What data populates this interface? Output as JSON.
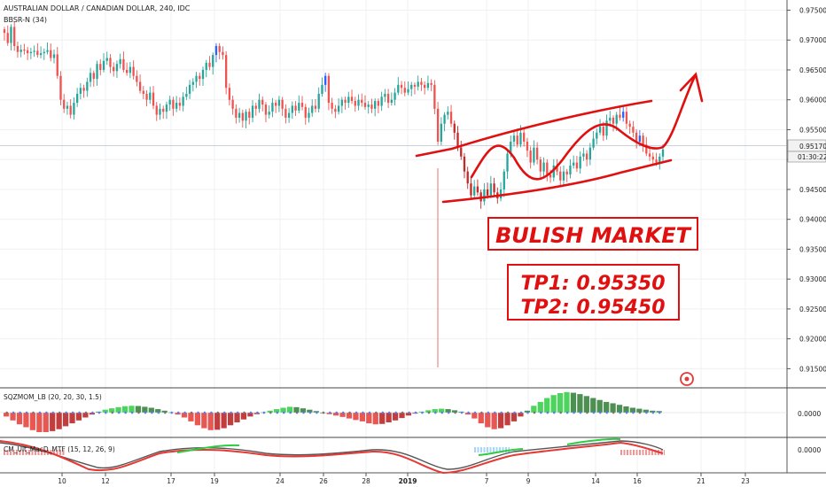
{
  "header": {
    "symbol_title": "AUSTRALIAN DOLLAR / CANADIAN DOLLAR, 240, IDC",
    "indicator_label": "BBSR-N (34)"
  },
  "chart_data": {
    "type": "candlestick",
    "price_axis": {
      "range": [
        0.9118,
        0.9767
      ],
      "ticks": [
        "0.97500",
        "0.97000",
        "0.96500",
        "0.96000",
        "0.95500",
        "0.95000",
        "0.94500",
        "0.94000",
        "0.93500",
        "0.93000",
        "0.92500",
        "0.92000",
        "0.91500"
      ],
      "last_price": "0.95170",
      "countdown": "01:30:22"
    },
    "x_axis": {
      "tick_labels": [
        "10",
        "12",
        "17",
        "19",
        "24",
        "26",
        "28",
        "2019",
        "7",
        "9",
        "14",
        "16",
        "21",
        "23"
      ]
    },
    "annotations": {
      "headline": "BULISH MARKET",
      "tp1": "TP1: 0.95350",
      "tp2": "TP2: 0.95450"
    },
    "closes": [
      0.9712,
      0.9695,
      0.9722,
      0.969,
      0.968,
      0.9684,
      0.9683,
      0.9678,
      0.968,
      0.9682,
      0.9675,
      0.9678,
      0.968,
      0.9683,
      0.967,
      0.9676,
      0.964,
      0.96,
      0.9585,
      0.959,
      0.9575,
      0.9595,
      0.961,
      0.962,
      0.9615,
      0.963,
      0.9645,
      0.9635,
      0.966,
      0.965,
      0.9665,
      0.967,
      0.9655,
      0.9648,
      0.966,
      0.9668,
      0.965,
      0.9645,
      0.9655,
      0.964,
      0.963,
      0.9615,
      0.961,
      0.96,
      0.9612,
      0.959,
      0.9575,
      0.9585,
      0.958,
      0.9592,
      0.96,
      0.9585,
      0.9595,
      0.959,
      0.9605,
      0.961,
      0.9625,
      0.963,
      0.964,
      0.9635,
      0.965,
      0.9662,
      0.9655,
      0.9675,
      0.969,
      0.968,
      0.9675,
      0.962,
      0.96,
      0.9585,
      0.957,
      0.9578,
      0.9565,
      0.958,
      0.957,
      0.959,
      0.9585,
      0.96,
      0.9592,
      0.9575,
      0.958,
      0.9595,
      0.959,
      0.96,
      0.9585,
      0.957,
      0.9578,
      0.959,
      0.9582,
      0.9595,
      0.9588,
      0.957,
      0.9578,
      0.959,
      0.9585,
      0.961,
      0.9625,
      0.964,
      0.9595,
      0.9585,
      0.958,
      0.959,
      0.96,
      0.9595,
      0.9605,
      0.9598,
      0.959,
      0.96,
      0.9595,
      0.9588,
      0.9592,
      0.9585,
      0.9598,
      0.959,
      0.9605,
      0.961,
      0.9595,
      0.96,
      0.9612,
      0.9625,
      0.962,
      0.9612,
      0.9618,
      0.9625,
      0.9622,
      0.963,
      0.9625,
      0.962,
      0.9628,
      0.9625,
      0.9585,
      0.953,
      0.956,
      0.9575,
      0.958,
      0.956,
      0.9545,
      0.952,
      0.9505,
      0.948,
      0.946,
      0.944,
      0.9455,
      0.9445,
      0.943,
      0.945,
      0.944,
      0.946,
      0.9445,
      0.9435,
      0.945,
      0.948,
      0.951,
      0.953,
      0.954,
      0.9525,
      0.9545,
      0.953,
      0.9515,
      0.9495,
      0.952,
      0.95,
      0.948,
      0.9495,
      0.9475,
      0.947,
      0.949,
      0.948,
      0.9465,
      0.948,
      0.9475,
      0.949,
      0.9495,
      0.9485,
      0.9505,
      0.951,
      0.95,
      0.952,
      0.9535,
      0.9545,
      0.9555,
      0.954,
      0.9565,
      0.957,
      0.956,
      0.9575,
      0.957,
      0.958,
      0.956,
      0.9555,
      0.9545,
      0.953,
      0.954,
      0.9525,
      0.951,
      0.9505,
      0.95,
      0.9495,
      0.9505,
      0.9517
    ],
    "squeeze_momentum": {
      "title": "SQZMOM_LB (20, 20, 30, 1.5)",
      "zero_label": "0.0000",
      "values": [
        -0.2,
        -0.4,
        -0.6,
        -0.75,
        -0.9,
        -1.0,
        -1.0,
        -0.95,
        -0.85,
        -0.7,
        -0.55,
        -0.4,
        -0.25,
        -0.1,
        0.05,
        0.15,
        0.22,
        0.28,
        0.33,
        0.35,
        0.34,
        0.3,
        0.25,
        0.18,
        0.1,
        0.02,
        -0.1,
        -0.25,
        -0.45,
        -0.65,
        -0.8,
        -0.9,
        -0.88,
        -0.8,
        -0.65,
        -0.5,
        -0.35,
        -0.2,
        -0.08,
        0.02,
        0.1,
        0.18,
        0.25,
        0.3,
        0.28,
        0.22,
        0.15,
        0.08,
        0.0,
        -0.08,
        -0.15,
        -0.22,
        -0.3,
        -0.38,
        -0.45,
        -0.55,
        -0.6,
        -0.58,
        -0.5,
        -0.4,
        -0.28,
        -0.15,
        -0.05,
        0.05,
        0.12,
        0.18,
        0.2,
        0.18,
        0.12,
        0.05,
        -0.1,
        -0.3,
        -0.55,
        -0.75,
        -0.85,
        -0.8,
        -0.65,
        -0.45,
        -0.2,
        0.1,
        0.35,
        0.55,
        0.75,
        0.9,
        1.0,
        1.05,
        1.02,
        0.95,
        0.85,
        0.75,
        0.65,
        0.55,
        0.48,
        0.4,
        0.32,
        0.25,
        0.2,
        0.15,
        0.1,
        0.08
      ]
    },
    "macd_mtf": {
      "title": "CM_Ult_MacD_MTF (15, 12, 26, 9)",
      "zero_label": "0.0000"
    }
  }
}
